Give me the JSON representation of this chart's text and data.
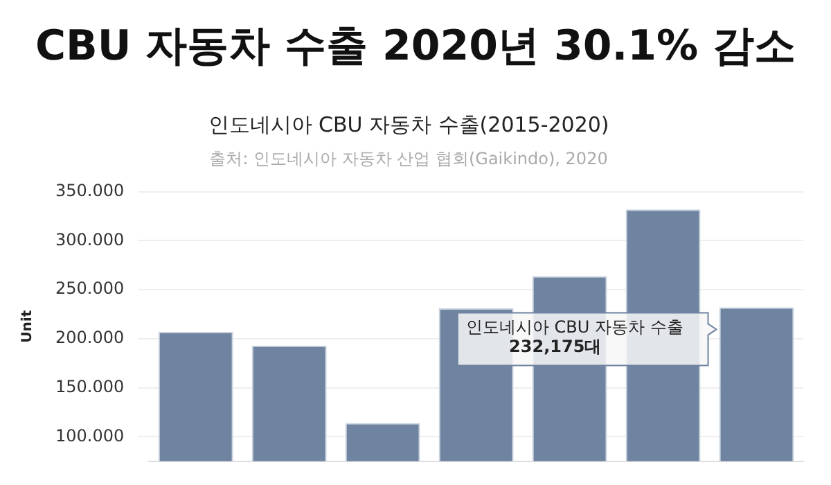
{
  "chart_data": {
    "type": "bar",
    "title": "CBU 자동차 수출 2020년 30.1% 감소",
    "subtitle": "인도네시아 CBU 자동차 수출(2015-2020)",
    "categories": [
      null,
      null,
      null,
      null,
      null,
      null,
      null
    ],
    "values": [
      207,
      193,
      114,
      231,
      264,
      332,
      232.175
    ],
    "color": "#6e84a0",
    "ylabel": "Unit",
    "ylim": [
      75,
      350
    ],
    "yticks": [
      {
        "value": 100,
        "label": "100.000"
      },
      {
        "value": 150,
        "label": "150.000"
      },
      {
        "value": 200,
        "label": "200.000"
      },
      {
        "value": 250,
        "label": "250.000"
      },
      {
        "value": 300,
        "label": "300.000"
      },
      {
        "value": 350,
        "label": "350.000"
      }
    ],
    "grid": "y",
    "tick_labels": "y",
    "annotations": [
      "출처: 인도네시아 자동차 산업 협회(Gaikindo), 2020",
      "인도네시아 CBU 자동차 수출\n232,175대"
    ]
  }
}
